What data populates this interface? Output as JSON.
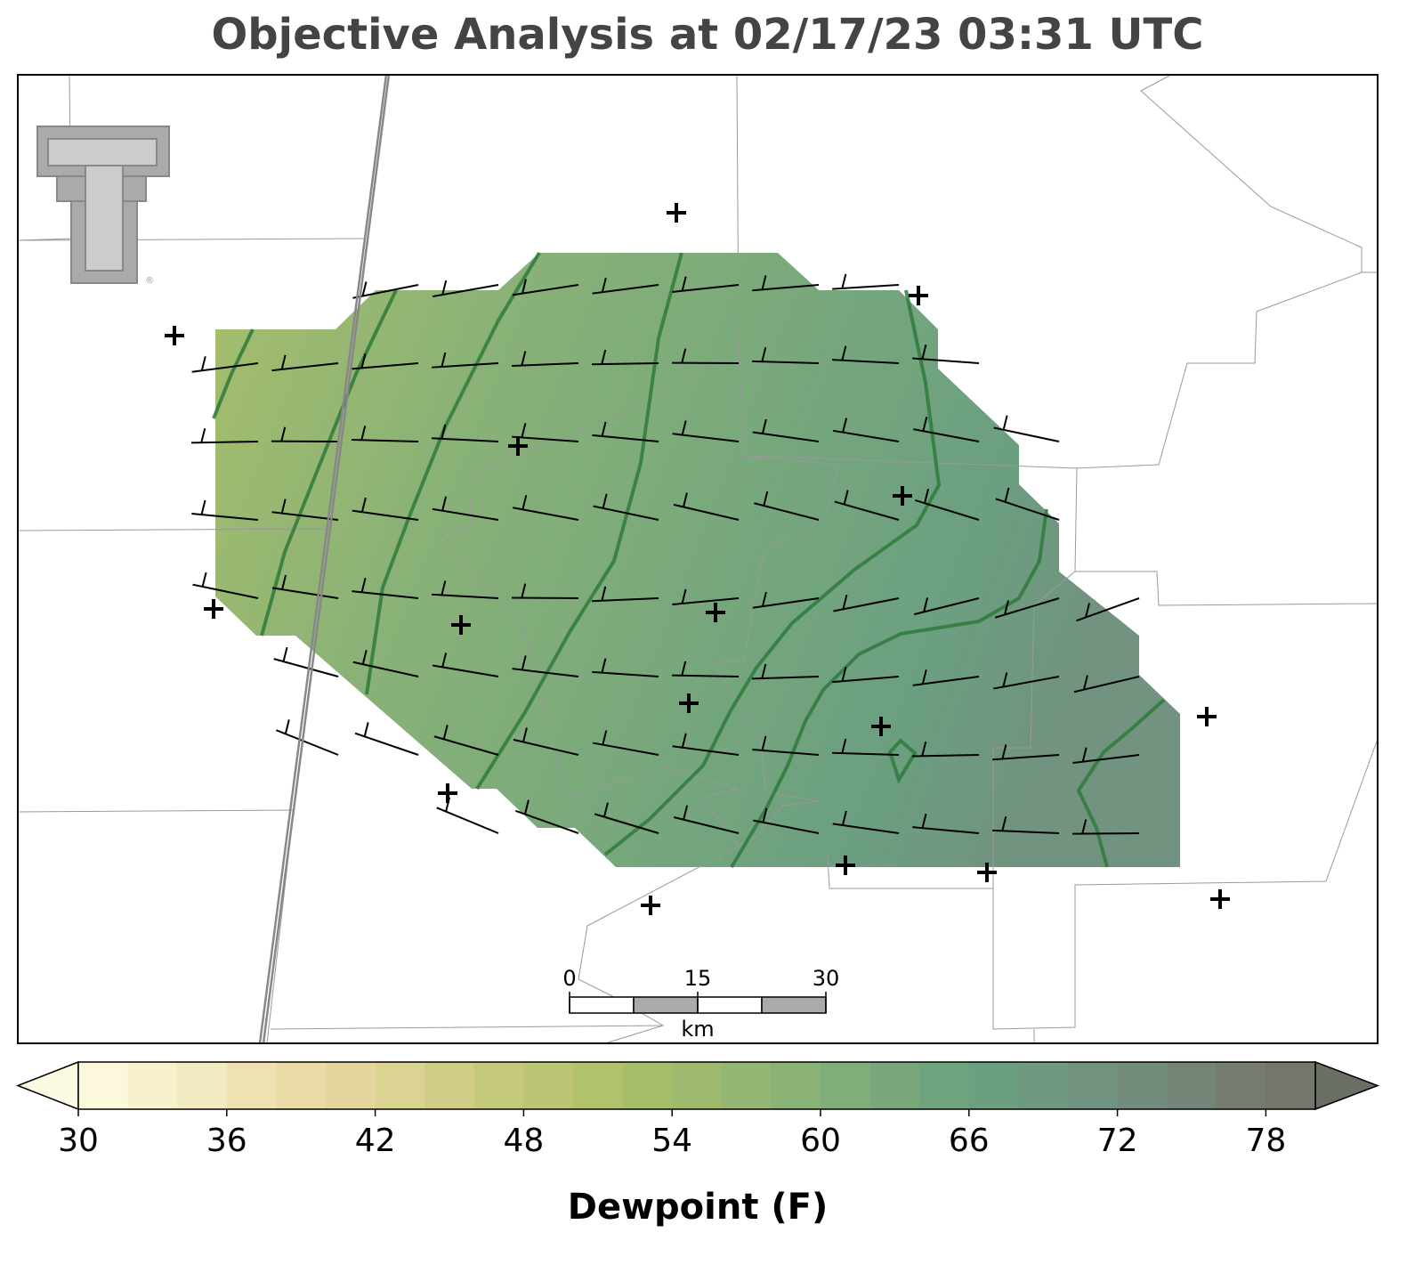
{
  "header": {
    "title": "Objective Analysis at 02/17/23 03:31 UTC"
  },
  "logo": {
    "mark": "®"
  },
  "scale_bar": {
    "ticks": [
      0,
      15,
      30
    ],
    "unit": "km"
  },
  "colorbar": {
    "label": "Dewpoint (F)",
    "lim": [
      30,
      80
    ],
    "ticks": [
      30,
      36,
      42,
      48,
      54,
      60,
      66,
      72,
      78
    ],
    "under_color": "#fcfae2",
    "over_color": "#6a6f64",
    "colors": [
      "#fbf8dc",
      "#f7f1cc",
      "#f2eac0",
      "#eee2b3",
      "#e9dba6",
      "#e4d69c",
      "#dad392",
      "#d0cd87",
      "#c5c97c",
      "#bbc573",
      "#b0c26c",
      "#a6be6b",
      "#9dba6f",
      "#94b673",
      "#8ab277",
      "#80ad7a",
      "#78a87c",
      "#70a47e",
      "#6b9f80",
      "#6d9a80",
      "#71937f",
      "#738b7b",
      "#748476",
      "#747d70",
      "#73776b"
    ]
  }
}
